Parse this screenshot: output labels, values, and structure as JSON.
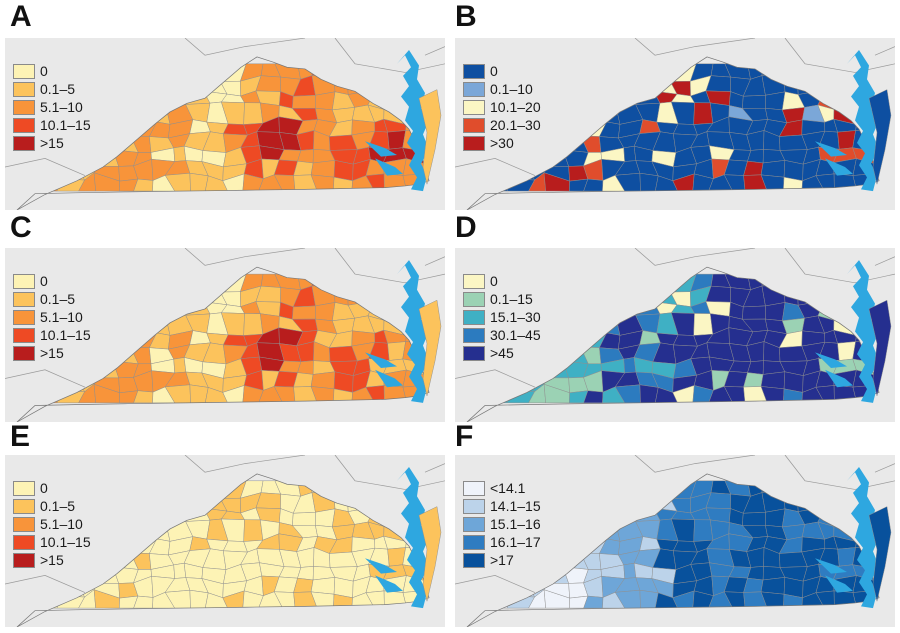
{
  "panels": [
    {
      "label": "A",
      "legend": [
        {
          "label": "0",
          "color": "#fdf3b5"
        },
        {
          "label": "0.1–5",
          "color": "#fcc35c"
        },
        {
          "label": "5.1–10",
          "color": "#f8943a"
        },
        {
          "label": "10.1–15",
          "color": "#ee4a24"
        },
        {
          "label": ">15",
          "color": "#b81d1d"
        }
      ]
    },
    {
      "label": "B",
      "legend": [
        {
          "label": "0",
          "color": "#0e4fa1"
        },
        {
          "label": "0.1–10",
          "color": "#7ba7d8"
        },
        {
          "label": "10.1–20",
          "color": "#fbf6c4"
        },
        {
          "label": "20.1–30",
          "color": "#e04d2c"
        },
        {
          "label": ">30",
          "color": "#b81d1d"
        }
      ]
    },
    {
      "label": "C",
      "legend": [
        {
          "label": "0",
          "color": "#fdf3b5"
        },
        {
          "label": "0.1–5",
          "color": "#fcc35c"
        },
        {
          "label": "5.1–10",
          "color": "#f8943a"
        },
        {
          "label": "10.1–15",
          "color": "#ee4a24"
        },
        {
          "label": ">15",
          "color": "#b81d1d"
        }
      ]
    },
    {
      "label": "D",
      "legend": [
        {
          "label": "0",
          "color": "#fbf6c4"
        },
        {
          "label": "0.1–15",
          "color": "#9bd2b4"
        },
        {
          "label": "15.1–30",
          "color": "#3fb0c4"
        },
        {
          "label": "30.1–45",
          "color": "#2c7bbf"
        },
        {
          "label": ">45",
          "color": "#252f8f"
        }
      ]
    },
    {
      "label": "E",
      "legend": [
        {
          "label": "0",
          "color": "#fdf3b5"
        },
        {
          "label": "0.1–5",
          "color": "#fcc35c"
        },
        {
          "label": "5.1–10",
          "color": "#f8943a"
        },
        {
          "label": "10.1–15",
          "color": "#ee4a24"
        },
        {
          "label": ">15",
          "color": "#b81d1d"
        }
      ]
    },
    {
      "label": "F",
      "legend": [
        {
          "label": "<14.1",
          "color": "#eff3fa"
        },
        {
          "label": "14.1–15",
          "color": "#bcd3ea"
        },
        {
          "label": "15.1–16",
          "color": "#6ea6d8"
        },
        {
          "label": "16.1–17",
          "color": "#2f7cc1"
        },
        {
          "label": ">17",
          "color": "#08519c"
        }
      ]
    }
  ],
  "map_colors": {
    "background": "#e9e9e9",
    "water": "#2ea7e0",
    "county_border": "#8f8f8f",
    "state_border": "#9a9a9a"
  }
}
